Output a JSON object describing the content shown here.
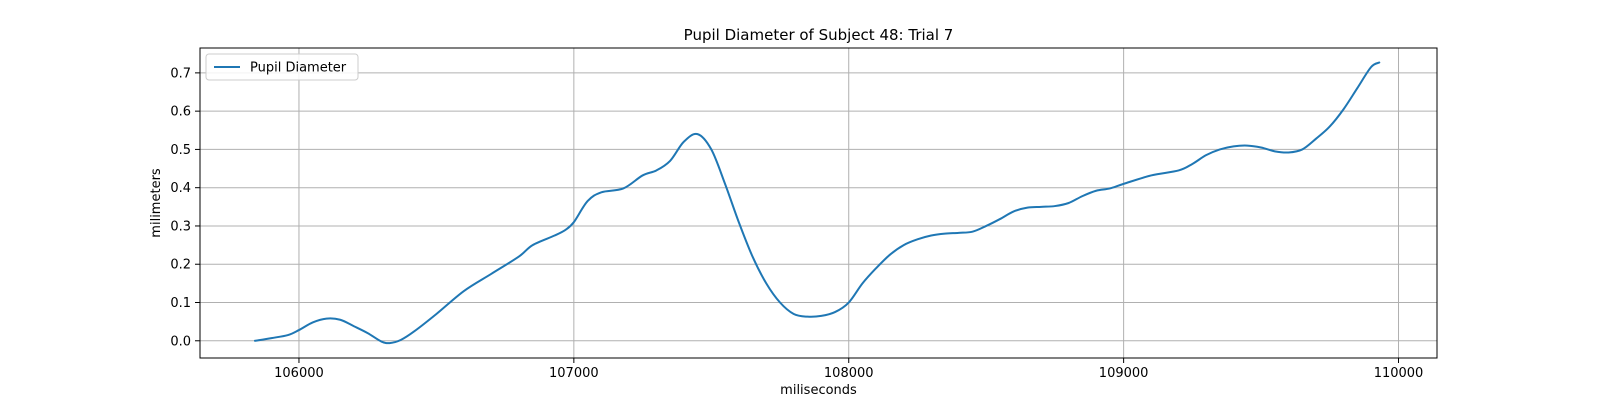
{
  "chart_data": {
    "type": "line",
    "title": "Pupil Diameter of Subject 48: Trial 7",
    "xlabel": "miliseconds",
    "ylabel": "milimeters",
    "xlim": [
      105640,
      110140
    ],
    "ylim": [
      -0.045,
      0.765
    ],
    "xticks": [
      106000,
      107000,
      108000,
      109000,
      110000
    ],
    "yticks": [
      0.0,
      0.1,
      0.2,
      0.3,
      0.4,
      0.5,
      0.6,
      0.7
    ],
    "ytick_labels": [
      "0.0",
      "0.1",
      "0.2",
      "0.3",
      "0.4",
      "0.5",
      "0.6",
      "0.7"
    ],
    "grid": true,
    "legend_position": "top-left",
    "colors": {
      "series": "#1f77b4",
      "grid": "#b0b0b0",
      "axes": "#000000"
    },
    "series": [
      {
        "name": "Pupil Diameter",
        "x": [
          105840,
          105900,
          105960,
          106000,
          106050,
          106100,
          106150,
          106200,
          106250,
          106300,
          106330,
          106370,
          106420,
          106500,
          106600,
          106700,
          106800,
          106850,
          106930,
          106970,
          107000,
          107050,
          107100,
          107180,
          107250,
          107300,
          107350,
          107400,
          107450,
          107500,
          107550,
          107600,
          107650,
          107700,
          107750,
          107800,
          107850,
          107900,
          107950,
          108000,
          108050,
          108100,
          108150,
          108200,
          108250,
          108300,
          108350,
          108400,
          108450,
          108500,
          108550,
          108600,
          108650,
          108700,
          108750,
          108800,
          108850,
          108900,
          108950,
          109000,
          109100,
          109200,
          109250,
          109300,
          109350,
          109400,
          109450,
          109500,
          109550,
          109600,
          109650,
          109700,
          109750,
          109800,
          109850,
          109900,
          109930
        ],
        "y": [
          0.0,
          0.007,
          0.015,
          0.028,
          0.048,
          0.058,
          0.055,
          0.038,
          0.02,
          -0.002,
          -0.006,
          0.002,
          0.025,
          0.07,
          0.13,
          0.175,
          0.22,
          0.25,
          0.275,
          0.29,
          0.31,
          0.365,
          0.388,
          0.398,
          0.432,
          0.445,
          0.47,
          0.52,
          0.54,
          0.5,
          0.41,
          0.31,
          0.22,
          0.15,
          0.1,
          0.07,
          0.063,
          0.065,
          0.075,
          0.1,
          0.15,
          0.19,
          0.225,
          0.25,
          0.265,
          0.275,
          0.28,
          0.282,
          0.285,
          0.3,
          0.318,
          0.338,
          0.348,
          0.35,
          0.352,
          0.36,
          0.378,
          0.392,
          0.398,
          0.41,
          0.432,
          0.445,
          0.462,
          0.485,
          0.5,
          0.508,
          0.51,
          0.505,
          0.495,
          0.492,
          0.5,
          0.528,
          0.56,
          0.605,
          0.66,
          0.715,
          0.727
        ]
      }
    ]
  }
}
